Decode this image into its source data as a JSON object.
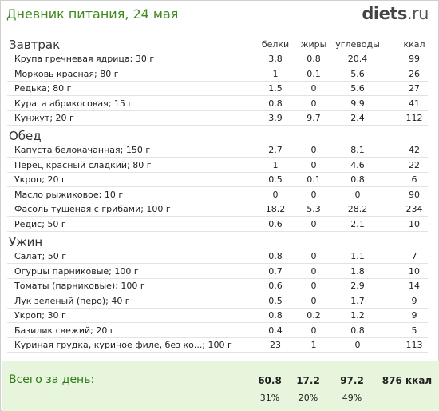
{
  "header": {
    "title": "Дневник питания, 24 мая",
    "logo_main": "diets",
    "logo_tld": ".ru"
  },
  "columns": {
    "protein": "белки",
    "fat": "жиры",
    "carbs": "углеводы",
    "kcal": "ккал"
  },
  "sections": [
    {
      "title": "Завтрак",
      "items": [
        {
          "name": "Крупа гречневая ядрица; 30 г",
          "p": "3.8",
          "f": "0.8",
          "c": "20.4",
          "k": "99"
        },
        {
          "name": "Морковь красная; 80 г",
          "p": "1",
          "f": "0.1",
          "c": "5.6",
          "k": "26"
        },
        {
          "name": "Редька; 80 г",
          "p": "1.5",
          "f": "0",
          "c": "5.6",
          "k": "27"
        },
        {
          "name": "Курага абрикосовая; 15 г",
          "p": "0.8",
          "f": "0",
          "c": "9.9",
          "k": "41"
        },
        {
          "name": "Кунжут; 20 г",
          "p": "3.9",
          "f": "9.7",
          "c": "2.4",
          "k": "112"
        }
      ]
    },
    {
      "title": "Обед",
      "items": [
        {
          "name": "Капуста белокачанная; 150 г",
          "p": "2.7",
          "f": "0",
          "c": "8.1",
          "k": "42"
        },
        {
          "name": "Перец красный сладкий; 80 г",
          "p": "1",
          "f": "0",
          "c": "4.6",
          "k": "22"
        },
        {
          "name": "Укроп; 20 г",
          "p": "0.5",
          "f": "0.1",
          "c": "0.8",
          "k": "6"
        },
        {
          "name": "Масло рыжиковое; 10 г",
          "p": "0",
          "f": "0",
          "c": "0",
          "k": "90"
        },
        {
          "name": "Фасоль тушеная с грибами; 100 г",
          "p": "18.2",
          "f": "5.3",
          "c": "28.2",
          "k": "234"
        },
        {
          "name": "Редис; 50 г",
          "p": "0.6",
          "f": "0",
          "c": "2.1",
          "k": "10"
        }
      ]
    },
    {
      "title": "Ужин",
      "items": [
        {
          "name": "Салат; 50 г",
          "p": "0.8",
          "f": "0",
          "c": "1.1",
          "k": "7"
        },
        {
          "name": "Огурцы парниковые; 100 г",
          "p": "0.7",
          "f": "0",
          "c": "1.8",
          "k": "10"
        },
        {
          "name": "Томаты (парниковые); 100 г",
          "p": "0.6",
          "f": "0",
          "c": "2.9",
          "k": "14"
        },
        {
          "name": "Лук зеленый (перо); 40 г",
          "p": "0.5",
          "f": "0",
          "c": "1.7",
          "k": "9"
        },
        {
          "name": "Укроп; 30 г",
          "p": "0.8",
          "f": "0.2",
          "c": "1.2",
          "k": "9"
        },
        {
          "name": "Базилик свежий; 20 г",
          "p": "0.4",
          "f": "0",
          "c": "0.8",
          "k": "5"
        },
        {
          "name": "Куриная грудка, куриное филе, без ко...; 100 г",
          "p": "23",
          "f": "1",
          "c": "0",
          "k": "113"
        }
      ]
    }
  ],
  "totals": {
    "label": "Всего за день:",
    "protein": "60.8",
    "fat": "17.2",
    "carbs": "97.2",
    "kcal": "876 ккал",
    "protein_pct": "31%",
    "fat_pct": "20%",
    "carbs_pct": "49%"
  },
  "colors": {
    "title_green": "#3d8a1e",
    "totals_bg": "#e6f5dc"
  }
}
